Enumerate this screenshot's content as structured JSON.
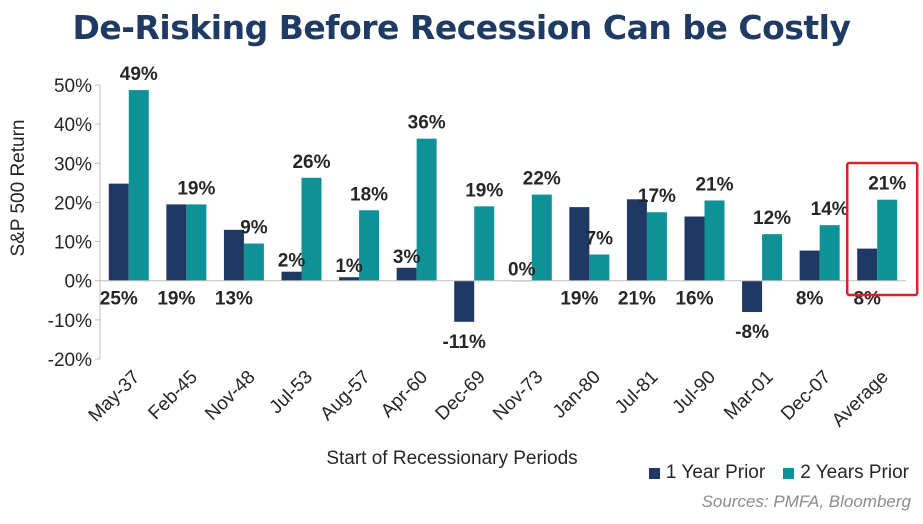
{
  "chart_data": {
    "type": "bar",
    "title": "De-Risking Before Recession Can be Costly",
    "xlabel": "Start of Recessionary Periods",
    "ylabel": "S&P 500 Return",
    "ylim": [
      -20,
      50
    ],
    "yticks": [
      -20,
      -10,
      0,
      10,
      20,
      30,
      40,
      50
    ],
    "ytick_labels": [
      "-20%",
      "-10%",
      "0%",
      "10%",
      "20%",
      "30%",
      "40%",
      "50%"
    ],
    "categories": [
      "May-37",
      "Feb-45",
      "Nov-48",
      "Jul-53",
      "Aug-57",
      "Apr-60",
      "Dec-69",
      "Nov-73",
      "Jan-80",
      "Jul-81",
      "Jul-90",
      "Mar-01",
      "Dec-07",
      "Average"
    ],
    "series": [
      {
        "name": "1 Year Prior",
        "color": "#1f3864",
        "values": [
          24.8,
          19.5,
          13.0,
          2.3,
          0.9,
          3.3,
          -10.5,
          0.0,
          18.8,
          20.8,
          16.4,
          -8.0,
          7.7,
          8.2
        ],
        "labels": [
          "25%",
          "19%",
          "13%",
          "2%",
          "1%",
          "3%",
          "-11%",
          "0%",
          "19%",
          "21%",
          "16%",
          "-8%",
          "8%",
          "8%"
        ]
      },
      {
        "name": "2 Years Prior",
        "color": "#0e9297",
        "values": [
          48.7,
          19.5,
          9.5,
          26.3,
          18.0,
          36.3,
          19.0,
          22.0,
          6.7,
          17.5,
          20.5,
          11.9,
          14.2,
          20.7
        ],
        "labels": [
          "49%",
          "19%",
          "9%",
          "26%",
          "18%",
          "36%",
          "19%",
          "22%",
          "7%",
          "17%",
          "21%",
          "12%",
          "14%",
          "21%"
        ]
      }
    ],
    "highlight_category": "Average",
    "highlight_color": "#d9232a",
    "grid": false,
    "legend_position": "bottom-right"
  },
  "source_text": "Sources: PMFA, Bloomberg"
}
